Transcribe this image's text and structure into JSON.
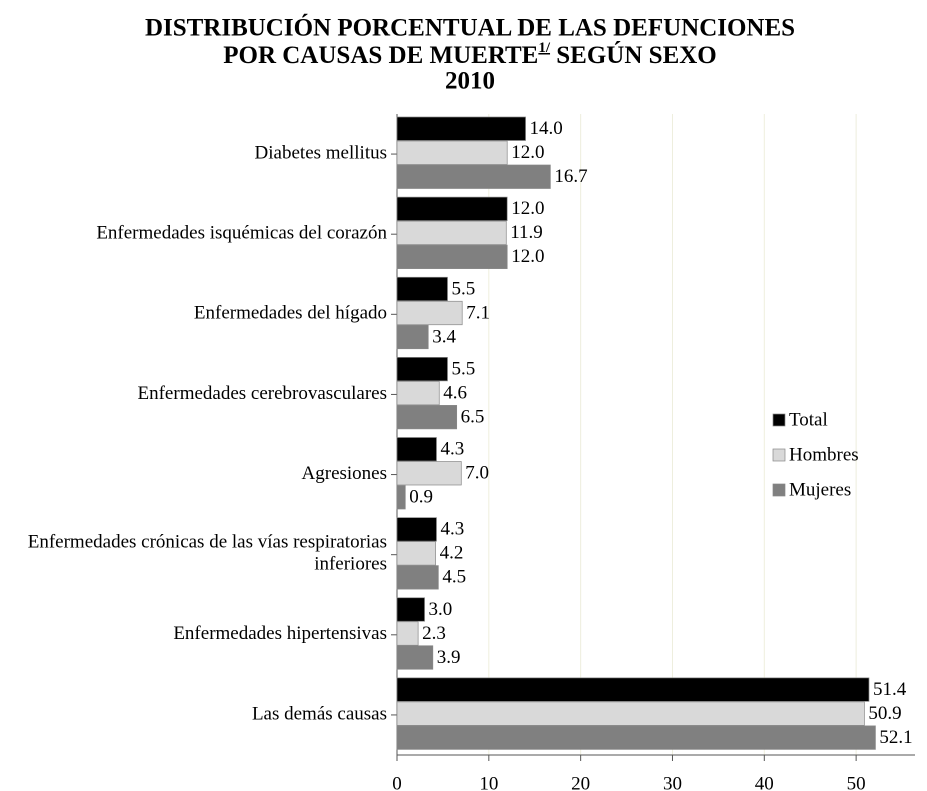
{
  "chart_data": {
    "type": "hbar",
    "title_line1": "DISTRIBUCIÓN PORCENTUAL DE LAS DEFUNCIONES",
    "title_line2": "POR CAUSAS DE MUERTE",
    "title_note": "1/",
    "title_line2_end": " SEGÚN SEXO",
    "subtitle": "2010",
    "categories": [
      "Diabetes mellitus",
      "Enfermedades isquémicas del corazón",
      "Enfermedades del hígado",
      "Enfermedades cerebrovasculares",
      "Agresiones",
      "Enfermedades crónicas de las vías respiratorias inferiores",
      "Enfermedades hipertensivas",
      "Las demás causas"
    ],
    "series": [
      {
        "name": "Total",
        "color": "#000000",
        "values": [
          14.0,
          12.0,
          5.5,
          5.5,
          4.3,
          4.3,
          3.0,
          51.4
        ],
        "value_labels": [
          "14.0",
          "12.0",
          "5.5",
          "5.5",
          "4.3",
          "4.3",
          "3.0",
          "51.4"
        ]
      },
      {
        "name": "Hombres",
        "color": "#d9d9d9",
        "values": [
          12.0,
          11.9,
          7.1,
          4.6,
          7.0,
          4.2,
          2.3,
          50.9
        ],
        "value_labels": [
          "12.0",
          "11.9",
          "7.1",
          "4.6",
          "7.0",
          "4.2",
          "2.3",
          "50.9"
        ]
      },
      {
        "name": "Mujeres",
        "color": "#808080",
        "values": [
          16.7,
          12.0,
          3.4,
          6.5,
          0.9,
          4.5,
          3.9,
          52.1
        ],
        "value_labels": [
          "16.7",
          "12.0",
          "3.4",
          "6.5",
          "0.9",
          "4.5",
          "3.9",
          "52.1"
        ]
      }
    ],
    "xlim": [
      0,
      57.5
    ],
    "xticks": [
      0,
      10,
      20,
      30,
      40,
      50
    ],
    "grid": true,
    "legend": "right"
  }
}
